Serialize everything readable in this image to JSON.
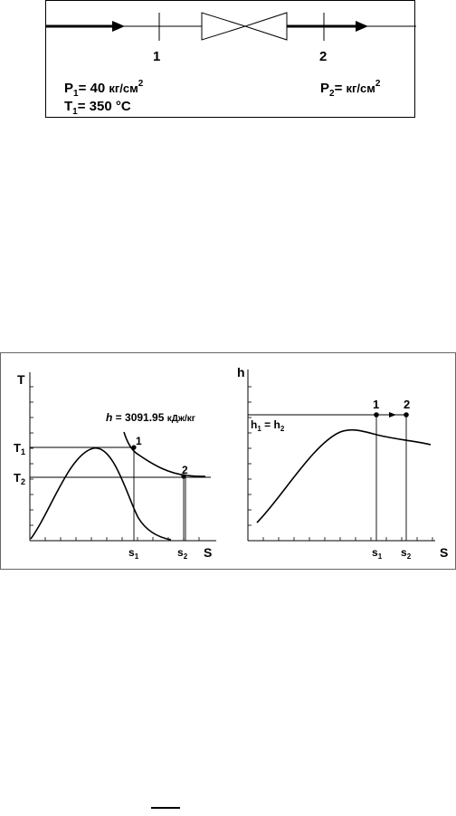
{
  "throttle": {
    "station1": "1",
    "station2": "2",
    "p1_label": "P",
    "p1_sub": "1",
    "p1_value": "= 40 ",
    "p1_unit": "кг/см",
    "p1_exp": "2",
    "t1_label": "T",
    "t1_sub": "1",
    "t1_value": "= 350 °C",
    "p2_label": "P",
    "p2_sub": "2",
    "p2_value": "= ",
    "p2_unit": "кг/см",
    "p2_exp": "2"
  },
  "ts_plot": {
    "y_axis": "T",
    "x_axis": "S",
    "t1": "T",
    "t1_sub": "1",
    "t2": "T",
    "t2_sub": "2",
    "h_label": "h",
    "h_value": " = 3091.95 ",
    "h_unit": "кДж/кг",
    "point1": "1",
    "point2": "2",
    "s1": "s",
    "s1_sub": "1",
    "s2": "s",
    "s2_sub": "2"
  },
  "hs_plot": {
    "y_axis": "h",
    "x_axis": "S",
    "h_eq": "h",
    "h_eq_sub1": "1",
    "h_eq_mid": " = h",
    "h_eq_sub2": "2",
    "point1": "1",
    "point2": "2",
    "s1": "s",
    "s1_sub": "1",
    "s2": "s",
    "s2_sub": "2"
  }
}
